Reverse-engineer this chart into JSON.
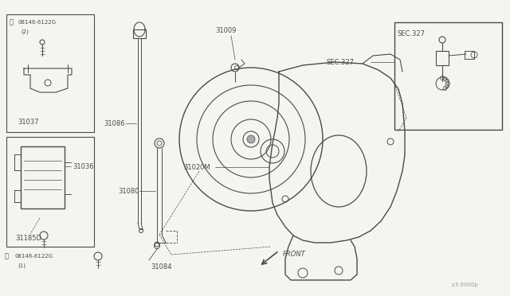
{
  "background_color": "#f5f5f0",
  "line_color": "#4a4a4a",
  "fig_width": 6.4,
  "fig_height": 3.72,
  "dpi": 100,
  "parts": {
    "box1_label_B": "B",
    "box1_part": "08146-6122G",
    "box1_qty": "(2)",
    "box1_name": "31037",
    "box2_part": "31036",
    "box2_bolt": "31185D",
    "box2_label_B": "B",
    "box2_part2": "08146-6122G",
    "box2_qty2": "(1)",
    "dipstick_label": "31086",
    "tube_label": "31080",
    "bolt_bottom": "31084",
    "converter_top": "31009",
    "housing_label": "31020M",
    "sec_label": "SEC.327",
    "front_text": "FRONT",
    "watermark": "s3 0000p"
  }
}
